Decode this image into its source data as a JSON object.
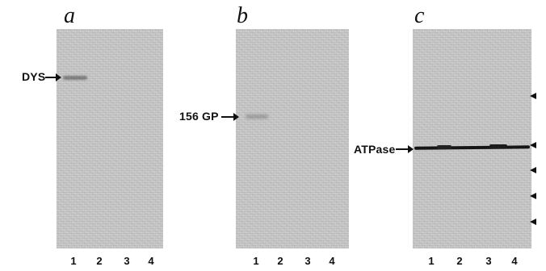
{
  "panels": [
    {
      "letter": "a",
      "marker_label": "DYS",
      "lanes": [
        "1",
        "2",
        "3",
        "4"
      ]
    },
    {
      "letter": "b",
      "marker_label": "156 GP",
      "lanes": [
        "1",
        "2",
        "3",
        "4"
      ]
    },
    {
      "letter": "c",
      "marker_label": "ATPase",
      "lanes": [
        "1",
        "2",
        "3",
        "4"
      ],
      "size_marker_count": 5
    }
  ]
}
